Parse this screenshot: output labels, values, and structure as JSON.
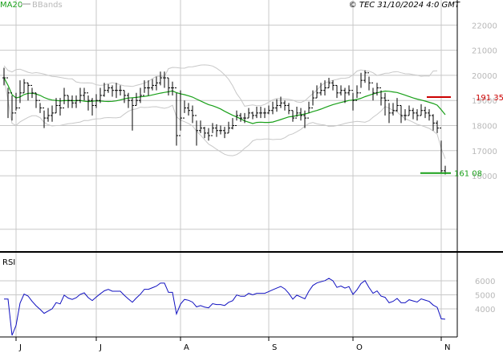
{
  "header": {
    "ma_label": "MA20",
    "bb_label": "BBands",
    "copyright": "© TEC 31/10/2024 4:0 GMT"
  },
  "colors": {
    "ma": "#19a019",
    "bands": "#c8c8c8",
    "bars": "#000000",
    "rsi": "#1010c0",
    "high_line": "#cc0000",
    "low_line": "#19a019",
    "grid": "#c8c8c8",
    "axis_text": "#b8b8b8",
    "frame": "#000000"
  },
  "chart_data": [
    {
      "type": "ohlc",
      "name": "price",
      "ylim": [
        13000,
        23000
      ],
      "yticks": [
        16000,
        17000,
        18000,
        19000,
        20000,
        21000,
        22000
      ],
      "ytick_labels": [
        "16000",
        "17000",
        "18000",
        "19000",
        "20000",
        "21000",
        "22000"
      ],
      "xticks": [
        "J",
        "J",
        "A",
        "S",
        "O",
        "N"
      ],
      "xtick_pos": [
        4,
        24,
        45,
        67,
        88,
        110
      ],
      "n": 111,
      "close": [
        19900,
        19300,
        18500,
        18700,
        19300,
        19700,
        19600,
        19300,
        19000,
        18700,
        18300,
        18400,
        18500,
        18800,
        18700,
        19200,
        19000,
        18900,
        19000,
        19200,
        19300,
        19000,
        18800,
        19000,
        19200,
        19400,
        19500,
        19400,
        19400,
        19400,
        19200,
        19000,
        18800,
        19000,
        19200,
        19500,
        19500,
        19600,
        19700,
        19900,
        19900,
        19500,
        19500,
        17600,
        18300,
        18700,
        18600,
        18400,
        17800,
        17900,
        17700,
        17600,
        17900,
        17800,
        17800,
        17700,
        17900,
        18000,
        18400,
        18300,
        18300,
        18500,
        18400,
        18500,
        18500,
        18500,
        18600,
        18700,
        18800,
        18900,
        18800,
        18600,
        18300,
        18500,
        18400,
        18300,
        18700,
        19100,
        19300,
        19400,
        19500,
        19700,
        19600,
        19300,
        19400,
        19300,
        19400,
        19000,
        19300,
        19800,
        20100,
        19700,
        19300,
        19500,
        19100,
        19000,
        18500,
        18600,
        18800,
        18400,
        18400,
        18600,
        18500,
        18400,
        18600,
        18500,
        18400,
        18100,
        17900,
        16200,
        16108
      ],
      "high": [
        20300,
        19500,
        19200,
        19300,
        19800,
        19850,
        19700,
        19500,
        19300,
        18900,
        18600,
        18700,
        18800,
        19100,
        19100,
        19500,
        19200,
        19200,
        19200,
        19500,
        19500,
        19200,
        19100,
        19250,
        19500,
        19700,
        19650,
        19600,
        19700,
        19600,
        19400,
        19300,
        19100,
        19300,
        19500,
        19800,
        19800,
        19850,
        19950,
        20150,
        20150,
        19900,
        19750,
        19300,
        19400,
        19000,
        18900,
        18800,
        18200,
        18200,
        17950,
        17900,
        18100,
        18050,
        18000,
        17950,
        18150,
        18300,
        18600,
        18500,
        18500,
        18700,
        18550,
        18750,
        18750,
        18700,
        18800,
        18950,
        19050,
        19150,
        19000,
        18900,
        18600,
        18750,
        18700,
        18600,
        18950,
        19400,
        19600,
        19700,
        19800,
        19900,
        19800,
        19600,
        19600,
        19500,
        19600,
        19300,
        19600,
        20100,
        20200,
        19950,
        19500,
        19700,
        19400,
        19300,
        18900,
        18900,
        19100,
        18800,
        18650,
        18800,
        18700,
        18650,
        18850,
        18750,
        18650,
        18450,
        18200,
        17400,
        16400
      ],
      "low": [
        19600,
        18300,
        18200,
        18600,
        18900,
        19300,
        19000,
        19100,
        18700,
        18500,
        17900,
        18150,
        18150,
        18500,
        18400,
        18850,
        18700,
        18700,
        18700,
        18900,
        19000,
        18600,
        18400,
        18700,
        18900,
        19150,
        19300,
        19150,
        19100,
        19200,
        18900,
        18700,
        17800,
        18800,
        18900,
        19300,
        19200,
        19400,
        19400,
        19600,
        19500,
        19200,
        19200,
        17200,
        17800,
        18500,
        18400,
        18100,
        17200,
        17700,
        17500,
        17400,
        17700,
        17550,
        17650,
        17500,
        17700,
        17850,
        18200,
        18150,
        18100,
        18300,
        18250,
        18300,
        18300,
        18300,
        18450,
        18450,
        18550,
        18700,
        18600,
        18450,
        18150,
        18350,
        18200,
        17900,
        18500,
        18800,
        19100,
        19200,
        19200,
        19500,
        19400,
        19100,
        19200,
        18900,
        19200,
        18600,
        19100,
        19500,
        19700,
        19400,
        19000,
        19200,
        18800,
        18400,
        18100,
        18400,
        18550,
        18100,
        18200,
        18400,
        18250,
        18200,
        18400,
        18300,
        18200,
        17800,
        17700,
        16100,
        16050
      ]
    },
    {
      "type": "line",
      "name": "rsi",
      "ylim": [
        2000,
        8000
      ],
      "yticks": [
        4000,
        5000,
        6000
      ],
      "ytick_labels": [
        "4000",
        "5000",
        "6000"
      ],
      "label": "RSI"
    }
  ],
  "annotations": {
    "last_high_value": 19135,
    "last_high_label": "191 35",
    "last_low_value": 16108,
    "last_low_label": "161 08"
  }
}
